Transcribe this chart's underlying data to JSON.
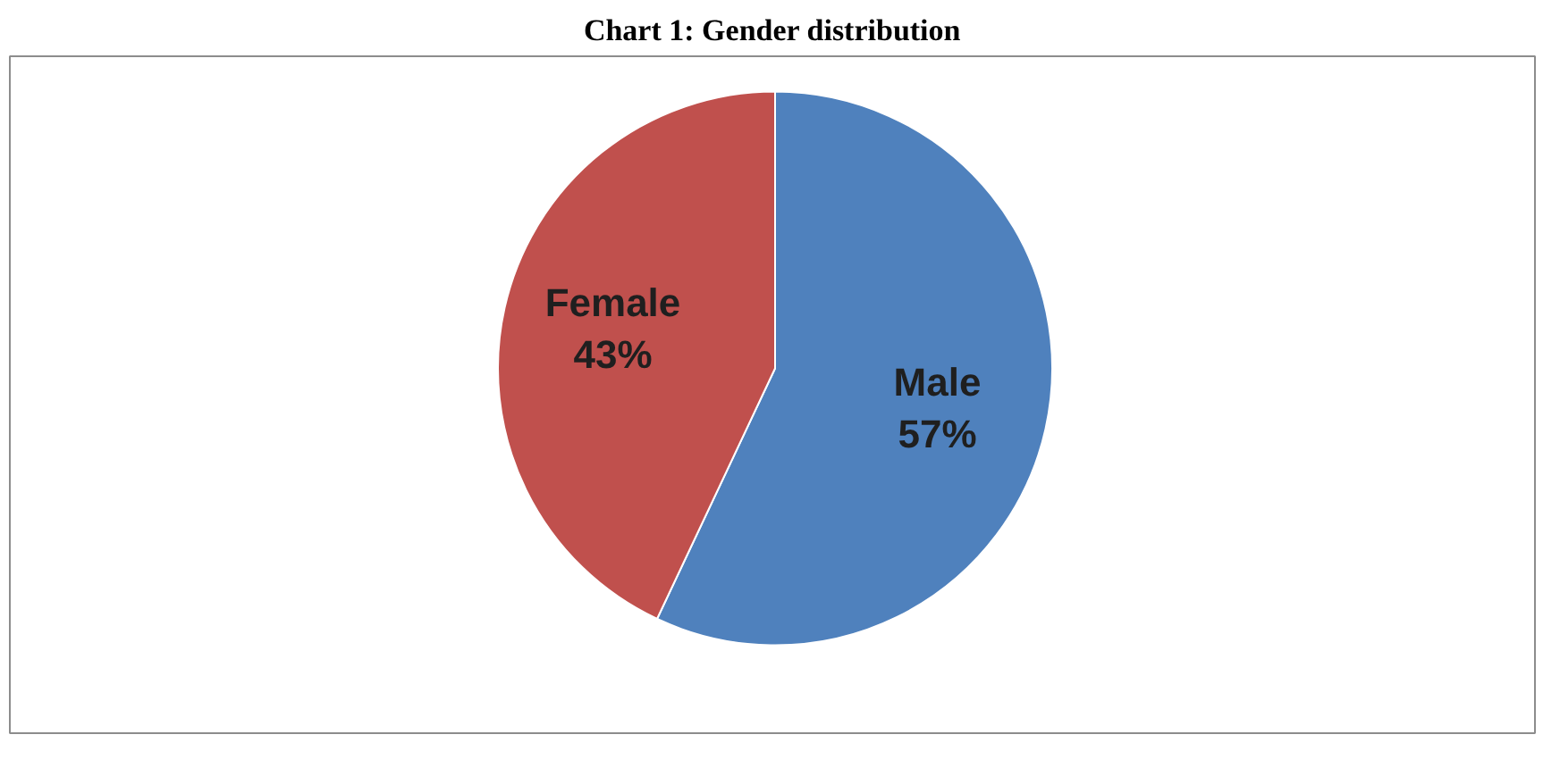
{
  "chart_data": {
    "type": "pie",
    "title": "Chart 1: Gender distribution",
    "categories": [
      "Male",
      "Female"
    ],
    "values": [
      57,
      43
    ],
    "colors": [
      "#4f81bd",
      "#c0504d"
    ],
    "value_labels": [
      "57%",
      "43%"
    ]
  }
}
